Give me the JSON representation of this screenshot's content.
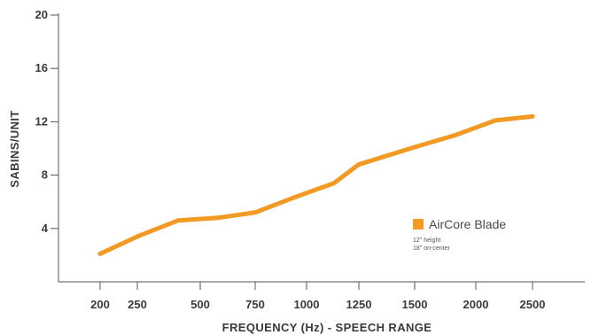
{
  "chart_data": {
    "type": "line",
    "xlabel": "FREQUENCY (Hz) - SPEECH RANGE",
    "ylabel": "SABINS/UNIT",
    "ylim": [
      0,
      20
    ],
    "yticks": [
      4,
      8,
      12,
      16,
      20
    ],
    "x_tick_labels": [
      "200",
      "250",
      "500",
      "750",
      "1000",
      "1250",
      "1500",
      "2000",
      "2500"
    ],
    "grid": false,
    "legend_position": "right",
    "series": [
      {
        "name": "AirCore Blade",
        "color": "#F39A24",
        "notes": [
          "12\" height",
          "18\" on-center"
        ],
        "points": [
          {
            "x": "200",
            "y": 2.1
          },
          {
            "x": "250",
            "y": 3.4
          },
          {
            "x": "~400",
            "y": 4.6
          },
          {
            "x": "~600",
            "y": 4.8
          },
          {
            "x": "750",
            "y": 5.2
          },
          {
            "x": "~900",
            "y": 6.3
          },
          {
            "x": "~1100",
            "y": 7.4
          },
          {
            "x": "1250",
            "y": 8.8
          },
          {
            "x": "1500",
            "y": 10.1
          },
          {
            "x": "~1750",
            "y": 11.0
          },
          {
            "x": "~2200",
            "y": 12.1
          },
          {
            "x": "2500",
            "y": 12.4
          }
        ]
      }
    ]
  }
}
